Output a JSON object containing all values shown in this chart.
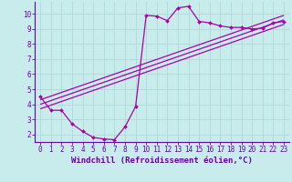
{
  "xlabel": "Windchill (Refroidissement éolien,°C)",
  "bg_color": "#c8ecec",
  "grid_color": "#b0d8d8",
  "line_color": "#aa00aa",
  "axis_color": "#6600aa",
  "spine_color": "#6600aa",
  "xlim": [
    -0.5,
    23.5
  ],
  "ylim": [
    1.5,
    10.8
  ],
  "yticks": [
    2,
    3,
    4,
    5,
    6,
    7,
    8,
    9,
    10
  ],
  "xticks": [
    0,
    1,
    2,
    3,
    4,
    5,
    6,
    7,
    8,
    9,
    10,
    11,
    12,
    13,
    14,
    15,
    16,
    17,
    18,
    19,
    20,
    21,
    22,
    23
  ],
  "curve_x": [
    0,
    1,
    2,
    3,
    4,
    5,
    6,
    7,
    8,
    9,
    10,
    11,
    12,
    13,
    14,
    15,
    16,
    17,
    18,
    19,
    20,
    21,
    22,
    23
  ],
  "curve_y": [
    4.5,
    3.6,
    3.6,
    2.7,
    2.2,
    1.8,
    1.7,
    1.65,
    2.5,
    3.85,
    9.9,
    9.85,
    9.55,
    10.4,
    10.5,
    9.5,
    9.4,
    9.2,
    9.1,
    9.1,
    9.0,
    9.05,
    9.4,
    9.5
  ],
  "line1_x": [
    0,
    23
  ],
  "line1_y": [
    4.3,
    9.9
  ],
  "line2_x": [
    0,
    23
  ],
  "line2_y": [
    3.7,
    9.3
  ],
  "line3_x": [
    0,
    23
  ],
  "line3_y": [
    4.0,
    9.6
  ],
  "tick_font_size": 5.5,
  "label_font_size": 6.5
}
